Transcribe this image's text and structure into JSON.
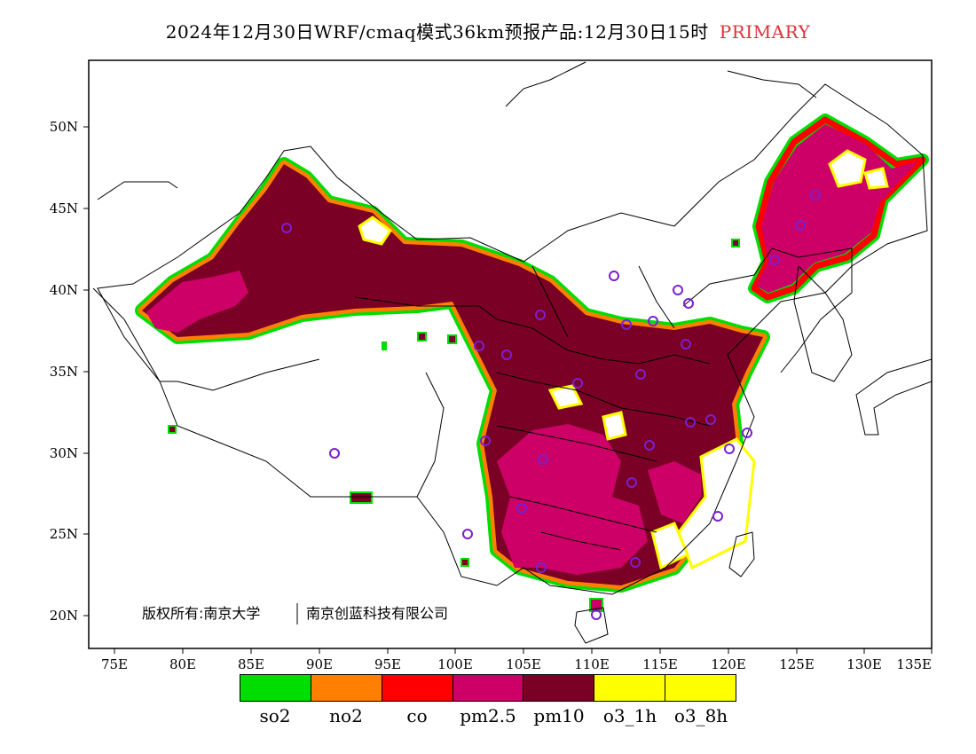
{
  "title": {
    "text": "2024年12月30日WRF/cmaq模式36km预报产品:12月30日15时",
    "tag": "PRIMARY",
    "tag_color": "#e0303a"
  },
  "map": {
    "lat_ticks": [
      "50N",
      "45N",
      "40N",
      "35N",
      "30N",
      "25N",
      "20N"
    ],
    "lon_ticks": [
      "75E",
      "80E",
      "85E",
      "90E",
      "95E",
      "100E",
      "105E",
      "110E",
      "115E",
      "120E",
      "125E",
      "130E",
      "135E"
    ],
    "copyright_left": "版权所有:南京大学",
    "copyright_right": "南京创蓝科技有限公司",
    "colors": {
      "pm10": "#7a0026",
      "pm25": "#cc0066",
      "o3": "#ffff00",
      "no2": "#ff8000",
      "co": "#ff0000",
      "so2": "#00dd00",
      "station": "#7a1fd0"
    },
    "station_icon": "circle-station-marker"
  },
  "legend": [
    {
      "label": "so2",
      "color": "#00dd00"
    },
    {
      "label": "no2",
      "color": "#ff8000"
    },
    {
      "label": "co",
      "color": "#ff0000"
    },
    {
      "label": "pm2.5",
      "color": "#cc0066"
    },
    {
      "label": "pm10",
      "color": "#7a0026"
    },
    {
      "label": "o3_1h",
      "color": "#ffff00"
    },
    {
      "label": "o3_8h",
      "color": "#ffff00"
    }
  ]
}
